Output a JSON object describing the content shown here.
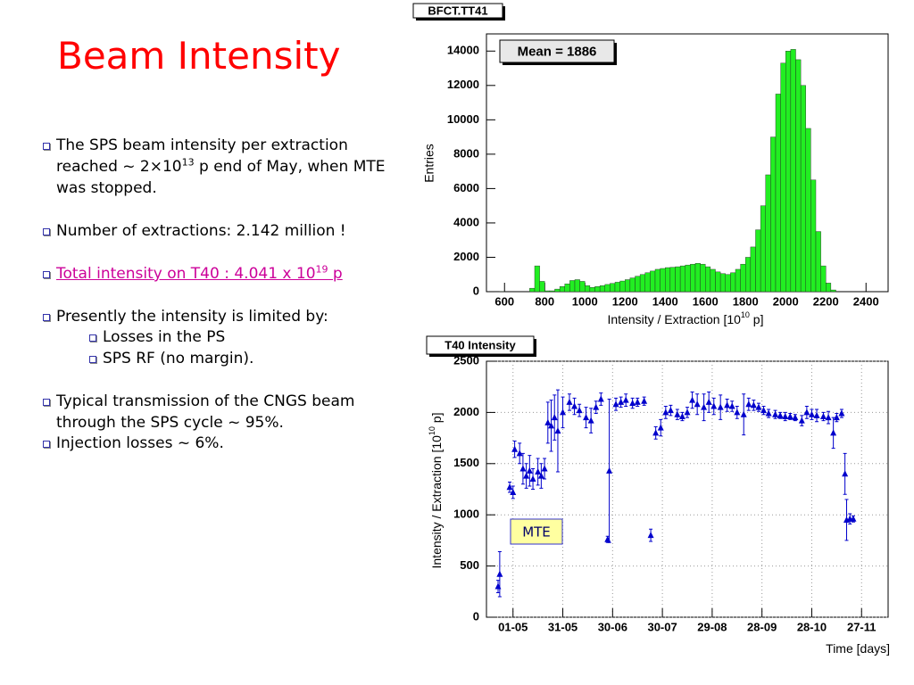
{
  "slide": {
    "title": "Beam Intensity",
    "bullets": [
      [
        {
          "text": "The SPS beam intensity per extraction reached ~ 2×10"
        },
        {
          "sup": "13"
        },
        {
          "text": " p  end of May, when MTE was stopped."
        }
      ],
      [
        {
          "text": "Number of extractions: 2.142 million !"
        }
      ],
      [
        {
          "text": "Total intensity on T40 : 4.041 x 10"
        },
        {
          "sup": "19"
        },
        {
          "text": " p"
        }
      ],
      [
        {
          "text": "Presently the intensity is limited by:"
        }
      ],
      [
        {
          "text": "Typical transmission of the CNGS beam through the SPS cycle ~ 95%."
        }
      ],
      [
        {
          "text": "Injection losses ~ 6%."
        }
      ]
    ],
    "sub_bullets": [
      "Losses in the PS",
      "SPS RF (no margin)."
    ]
  },
  "chart_data": [
    {
      "type": "histogram",
      "title": "BFCT.TT41",
      "annotations": [
        "Mean = 1886"
      ],
      "x_label": [
        {
          "text": "Intensity / Extraction [10"
        },
        {
          "sup": "10"
        },
        {
          "text": " p]"
        }
      ],
      "y_label": "Entries",
      "bins": [
        550,
        575,
        600,
        625,
        650,
        675,
        700,
        725,
        750,
        775,
        800,
        825,
        850,
        875,
        900,
        925,
        950,
        975,
        1000,
        1025,
        1050,
        1075,
        1100,
        1125,
        1150,
        1175,
        1200,
        1225,
        1250,
        1275,
        1300,
        1325,
        1350,
        1375,
        1400,
        1425,
        1450,
        1475,
        1500,
        1525,
        1550,
        1575,
        1600,
        1625,
        1650,
        1675,
        1700,
        1725,
        1750,
        1775,
        1800,
        1825,
        1850,
        1875,
        1900,
        1925,
        1950,
        1975,
        2000,
        2025,
        2050,
        2075,
        2100,
        2125,
        2150,
        2175,
        2200,
        2225,
        2250
      ],
      "values": [
        20,
        10,
        0,
        0,
        0,
        0,
        0,
        200,
        1500,
        600,
        50,
        50,
        150,
        300,
        450,
        650,
        700,
        600,
        350,
        250,
        300,
        350,
        420,
        480,
        550,
        620,
        700,
        800,
        900,
        1000,
        1100,
        1200,
        1300,
        1350,
        1400,
        1420,
        1450,
        1500,
        1550,
        1600,
        1650,
        1600,
        1450,
        1300,
        1150,
        1050,
        1000,
        1100,
        1300,
        1600,
        2000,
        2600,
        3600,
        5000,
        6800,
        9000,
        11500,
        13300,
        14000,
        14100,
        13500,
        12000,
        9500,
        6500,
        3500,
        1500,
        500,
        100
      ],
      "color": "#22ee22",
      "xlim": [
        510,
        2510
      ],
      "xticks": [
        600,
        800,
        1000,
        1200,
        1400,
        1600,
        1800,
        2000,
        2200,
        2400
      ],
      "ylim": [
        0,
        15000
      ],
      "yticks": [
        0,
        2000,
        4000,
        6000,
        8000,
        10000,
        12000,
        14000
      ],
      "grid": false
    },
    {
      "type": "scatter",
      "title": "T40 Intensity",
      "annotations": [
        "MTE"
      ],
      "x_label": [
        {
          "text": "Time [days]"
        }
      ],
      "y_label": [
        {
          "text": "Intensity / Extraction [10"
        },
        {
          "sup": "10"
        },
        {
          "text": " p]"
        }
      ],
      "x": [
        112,
        113,
        119,
        121,
        122,
        125,
        127,
        129,
        131,
        133,
        136,
        138,
        140,
        142,
        144,
        146,
        148,
        151,
        155,
        158,
        161,
        165,
        168,
        171,
        174,
        178,
        179,
        183,
        186,
        189,
        193,
        196,
        200,
        204,
        207,
        210,
        213,
        216,
        220,
        223,
        226,
        229,
        232,
        236,
        239,
        242,
        246,
        250,
        253,
        256,
        260,
        263,
        266,
        269,
        272,
        275,
        279,
        282,
        285,
        288,
        291,
        295,
        298,
        301,
        304,
        308,
        311,
        314,
        316,
        319,
        321,
        322,
        324,
        326
      ],
      "values": [
        300,
        420,
        1270,
        1220,
        1640,
        1600,
        1450,
        1380,
        1430,
        1350,
        1420,
        1380,
        1450,
        1900,
        1870,
        1950,
        1820,
        2000,
        2100,
        2060,
        2020,
        1950,
        1920,
        2050,
        2130,
        760,
        1430,
        2080,
        2100,
        2120,
        2090,
        2100,
        2110,
        800,
        1800,
        1850,
        2000,
        2020,
        1980,
        1960,
        2000,
        2120,
        2080,
        2050,
        2100,
        2060,
        2050,
        2070,
        2060,
        2000,
        1980,
        2080,
        2070,
        2050,
        2020,
        1990,
        1980,
        1970,
        1960,
        1960,
        1950,
        1920,
        2000,
        1980,
        1970,
        1960,
        1950,
        1800,
        1950,
        1990,
        1400,
        950,
        960,
        960
      ],
      "errors": [
        60,
        220,
        50,
        60,
        80,
        100,
        150,
        120,
        150,
        100,
        130,
        120,
        100,
        200,
        250,
        220,
        400,
        150,
        80,
        80,
        60,
        100,
        120,
        60,
        60,
        30,
        700,
        60,
        50,
        60,
        50,
        40,
        40,
        60,
        60,
        80,
        60,
        50,
        50,
        40,
        50,
        80,
        100,
        130,
        100,
        80,
        120,
        60,
        50,
        60,
        200,
        60,
        50,
        40,
        40,
        40,
        40,
        30,
        40,
        30,
        30,
        50,
        60,
        50,
        60,
        40,
        60,
        150,
        40,
        40,
        200,
        200,
        50,
        30
      ],
      "color": "#0000cc",
      "xlim": [
        105,
        347
      ],
      "xticks": [
        {
          "value": 121,
          "label": "01-05"
        },
        {
          "value": 151,
          "label": "31-05"
        },
        {
          "value": 181,
          "label": "30-06"
        },
        {
          "value": 211,
          "label": "30-07"
        },
        {
          "value": 241,
          "label": "29-08"
        },
        {
          "value": 271,
          "label": "28-09"
        },
        {
          "value": 301,
          "label": "28-10"
        },
        {
          "value": 331,
          "label": "27-11"
        }
      ],
      "ylim": [
        0,
        2500
      ],
      "yticks": [
        0,
        500,
        1000,
        1500,
        2000,
        2500
      ],
      "grid": true
    }
  ]
}
